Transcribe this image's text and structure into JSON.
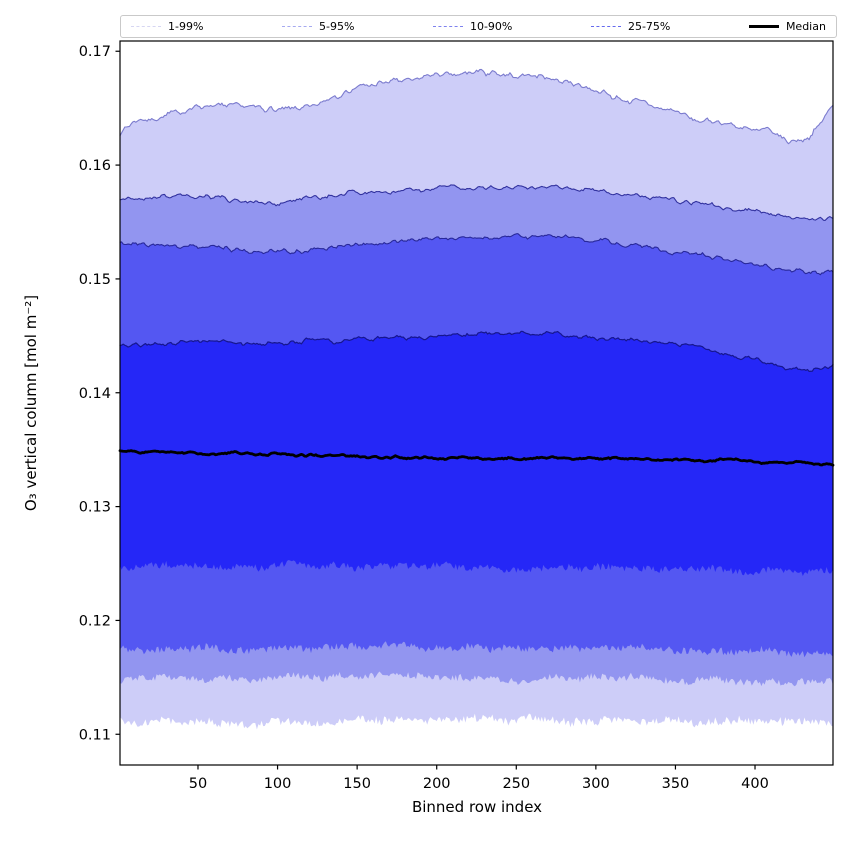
{
  "chart_data": {
    "type": "area",
    "subtype": "percentile-fan-chart",
    "title": "",
    "xlabel": "Binned row index",
    "ylabel": "O₃ vertical column [mol m⁻²]",
    "xlim": [
      1,
      449
    ],
    "ylim": [
      0.1073,
      0.1709
    ],
    "grid": false,
    "legend_position": "top",
    "axis_color": "#000000",
    "xticks": [
      50,
      100,
      150,
      200,
      250,
      300,
      350,
      400
    ],
    "xtick_labels": [
      "50",
      "100",
      "150",
      "200",
      "250",
      "300",
      "350",
      "400"
    ],
    "yticks": [
      0.11,
      0.12,
      0.13,
      0.14,
      0.15,
      0.16,
      0.17
    ],
    "ytick_labels": [
      "0.11",
      "0.12",
      "0.13",
      "0.14",
      "0.15",
      "0.16",
      "0.17"
    ],
    "anchors_x": [
      1,
      25,
      50,
      75,
      100,
      125,
      150,
      175,
      200,
      225,
      250,
      275,
      300,
      325,
      350,
      375,
      400,
      420,
      435,
      449
    ],
    "percentiles": [
      {
        "name": "p99",
        "label": "99th percentile",
        "line_color": "#7b7bce",
        "line_width": 1.1,
        "noise_amp": 0.0004,
        "noise_smooth": 3,
        "seed": 7,
        "values": [
          0.163,
          0.1643,
          0.165,
          0.1652,
          0.1648,
          0.1655,
          0.1668,
          0.1674,
          0.1678,
          0.1682,
          0.1679,
          0.1675,
          0.1665,
          0.1655,
          0.1646,
          0.1638,
          0.163,
          0.1622,
          0.1625,
          0.1653
        ]
      },
      {
        "name": "p95",
        "label": "95th percentile",
        "line_color": "#32329f",
        "line_width": 1.1,
        "noise_amp": 0.0003,
        "noise_smooth": 3,
        "seed": 21,
        "values": [
          0.157,
          0.1572,
          0.1573,
          0.157,
          0.1566,
          0.157,
          0.1576,
          0.1578,
          0.158,
          0.1582,
          0.1582,
          0.158,
          0.1577,
          0.1573,
          0.1569,
          0.1564,
          0.1559,
          0.1554,
          0.1552,
          0.1556
        ]
      },
      {
        "name": "p90",
        "label": "90th percentile",
        "line_color": "#28289a",
        "line_width": 1.1,
        "noise_amp": 0.0003,
        "noise_smooth": 3,
        "seed": 33,
        "values": [
          0.153,
          0.1529,
          0.1528,
          0.1526,
          0.1524,
          0.1527,
          0.153,
          0.1533,
          0.1535,
          0.1537,
          0.1538,
          0.1536,
          0.1533,
          0.1529,
          0.1524,
          0.1518,
          0.1512,
          0.1507,
          0.1504,
          0.1508
        ]
      },
      {
        "name": "p75",
        "label": "75th percentile",
        "line_color": "#16168e",
        "line_width": 1.2,
        "noise_amp": 0.00028,
        "noise_smooth": 3,
        "seed": 45,
        "values": [
          0.1441,
          0.1444,
          0.1445,
          0.1444,
          0.1443,
          0.1445,
          0.1447,
          0.1449,
          0.145,
          0.1452,
          0.1452,
          0.1451,
          0.1449,
          0.1446,
          0.1442,
          0.1436,
          0.143,
          0.1421,
          0.1418,
          0.1423
        ]
      },
      {
        "name": "median",
        "label": "Median",
        "line_color": "#000000",
        "line_width": 2.8,
        "noise_amp": 0.00015,
        "noise_smooth": 3,
        "seed": 58,
        "values": [
          0.1348,
          0.1348,
          0.1347,
          0.1346,
          0.1346,
          0.1345,
          0.1344,
          0.1343,
          0.1342,
          0.1342,
          0.1342,
          0.1342,
          0.1342,
          0.1342,
          0.1341,
          0.1341,
          0.134,
          0.1339,
          0.1338,
          0.1338
        ]
      },
      {
        "name": "p25",
        "label": "25th percentile",
        "line_color": null,
        "line_width": 0,
        "noise_amp": 0.00035,
        "noise_smooth": 1,
        "seed": 71,
        "values": [
          0.1247,
          0.1248,
          0.1248,
          0.1247,
          0.1247,
          0.1248,
          0.1248,
          0.1247,
          0.1247,
          0.1246,
          0.1246,
          0.1246,
          0.1245,
          0.1245,
          0.1244,
          0.1244,
          0.1243,
          0.1242,
          0.1242,
          0.1242
        ]
      },
      {
        "name": "p10",
        "label": "10th percentile",
        "line_color": null,
        "line_width": 0,
        "noise_amp": 0.00035,
        "noise_smooth": 1,
        "seed": 84,
        "values": [
          0.1174,
          0.1175,
          0.1176,
          0.1175,
          0.1175,
          0.1176,
          0.1177,
          0.1177,
          0.1177,
          0.1177,
          0.1177,
          0.1176,
          0.1176,
          0.1175,
          0.1174,
          0.1174,
          0.1173,
          0.1172,
          0.1172,
          0.1172
        ]
      },
      {
        "name": "p5",
        "label": "5th percentile",
        "line_color": null,
        "line_width": 0,
        "noise_amp": 0.00035,
        "noise_smooth": 1,
        "seed": 96,
        "values": [
          0.1148,
          0.1149,
          0.115,
          0.1149,
          0.1149,
          0.115,
          0.1151,
          0.1151,
          0.1151,
          0.115,
          0.115,
          0.115,
          0.1149,
          0.1149,
          0.1148,
          0.1147,
          0.1147,
          0.1146,
          0.1146,
          0.1146
        ]
      },
      {
        "name": "p1",
        "label": "1st percentile",
        "line_color": null,
        "line_width": 0,
        "noise_amp": 0.0004,
        "noise_smooth": 1,
        "seed": 109,
        "values": [
          0.1112,
          0.1111,
          0.1111,
          0.111,
          0.1109,
          0.1111,
          0.1113,
          0.1113,
          0.1113,
          0.1114,
          0.1113,
          0.1113,
          0.1112,
          0.1112,
          0.1111,
          0.1111,
          0.111,
          0.111,
          0.111,
          0.111
        ]
      }
    ],
    "bands": [
      {
        "name": "1-99%",
        "upper": "p99",
        "lower": "p1",
        "fill": "#cdcdf8"
      },
      {
        "name": "5-95%",
        "upper": "p95",
        "lower": "p5",
        "fill": "#9295f0"
      },
      {
        "name": "10-90%",
        "upper": "p90",
        "lower": "p10",
        "fill": "#5457f2"
      },
      {
        "name": "25-75%",
        "upper": "p75",
        "lower": "p25",
        "fill": "#2527f7"
      }
    ],
    "legend": [
      {
        "label": "1-99%",
        "color": "#d6d6f2",
        "style": "dashed"
      },
      {
        "label": "5-95%",
        "color": "#a6aaf0",
        "style": "dashed"
      },
      {
        "label": "10-90%",
        "color": "#7e82ee",
        "style": "dashed"
      },
      {
        "label": "25-75%",
        "color": "#656aee",
        "style": "dashed"
      },
      {
        "label": "Median",
        "color": "#000000",
        "style": "solid"
      }
    ]
  }
}
